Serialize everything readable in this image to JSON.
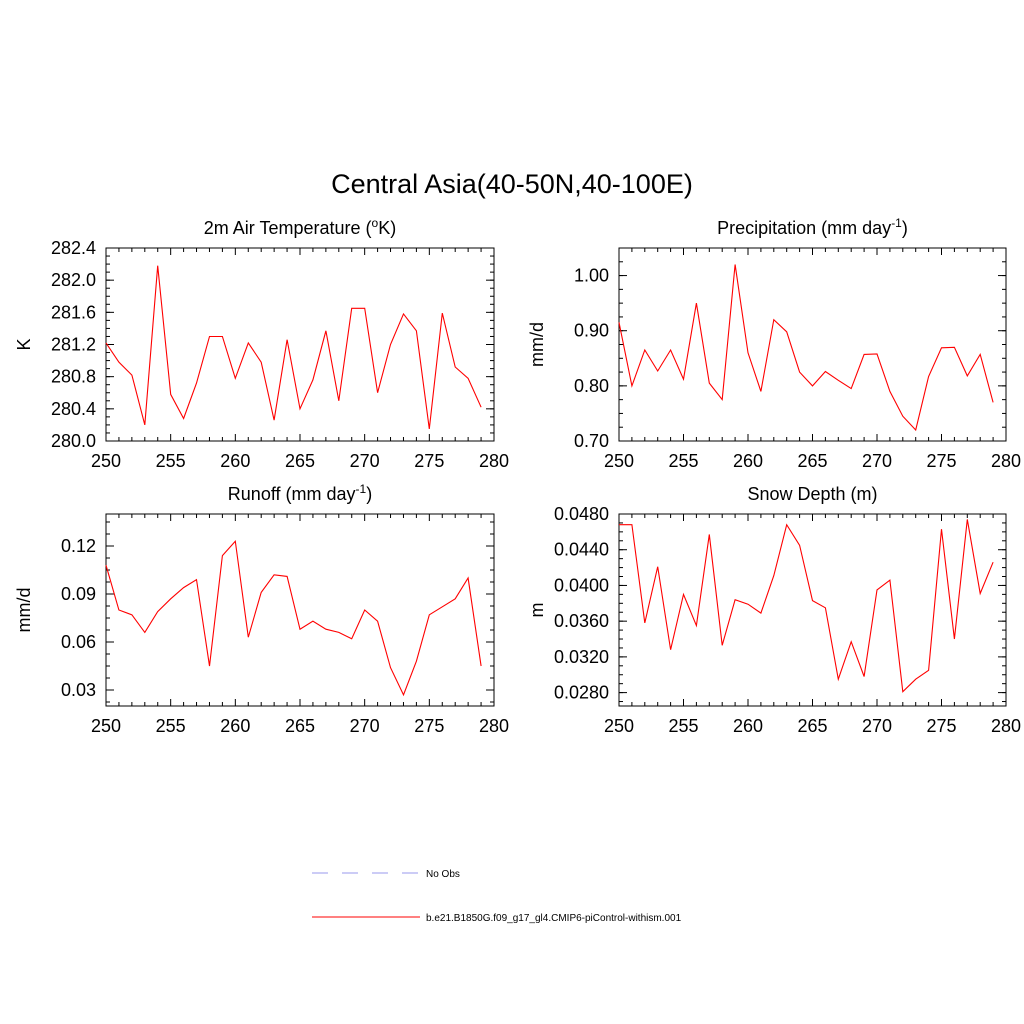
{
  "title": "Central Asia(40-50N,40-100E)",
  "colors": {
    "series": "#ff0000",
    "obs": "#9999ee",
    "axis": "#000000"
  },
  "legend": {
    "placement": "bottom-center",
    "entries": [
      {
        "label": "No Obs",
        "style": "dashed",
        "color": "#9999ee"
      },
      {
        "label": "b.e21.B1850G.f09_g17_gl4.CMIP6-piControl-withism.001",
        "style": "solid",
        "color": "#ff0000"
      }
    ]
  },
  "chart_data": [
    {
      "type": "line",
      "title": "2m Air Temperature (",
      "title_sup": "o",
      "title_after": "K)",
      "ylabel": "K",
      "xlim": [
        250,
        280
      ],
      "ylim": [
        280.0,
        282.4
      ],
      "xticks": [
        250,
        255,
        260,
        265,
        270,
        275,
        280
      ],
      "yticks": [
        280.0,
        280.4,
        280.8,
        281.2,
        281.6,
        282.0,
        282.4
      ],
      "ytick_labels": [
        "280.0",
        "280.4",
        "280.8",
        "281.2",
        "281.6",
        "282.0",
        "282.4"
      ],
      "x": [
        250,
        251,
        252,
        253,
        254,
        255,
        256,
        257,
        258,
        259,
        260,
        261,
        262,
        263,
        264,
        265,
        266,
        267,
        268,
        269,
        270,
        271,
        272,
        273,
        274,
        275,
        276,
        277,
        278,
        279
      ],
      "values": [
        281.22,
        280.98,
        280.82,
        280.2,
        282.18,
        280.58,
        280.28,
        280.72,
        281.3,
        281.3,
        280.78,
        281.22,
        280.98,
        280.26,
        281.26,
        280.4,
        280.76,
        281.37,
        280.5,
        281.65,
        281.65,
        280.6,
        281.2,
        281.58,
        281.37,
        280.15,
        281.59,
        280.92,
        280.78,
        280.42
      ]
    },
    {
      "type": "line",
      "title": "Precipitation (mm day",
      "title_sup": "-1",
      "title_after": ")",
      "ylabel": "mm/d",
      "xlim": [
        250,
        280
      ],
      "ylim": [
        0.7,
        1.05
      ],
      "xticks": [
        250,
        255,
        260,
        265,
        270,
        275,
        280
      ],
      "yticks": [
        0.7,
        0.8,
        0.9,
        1.0
      ],
      "ytick_labels": [
        "0.70",
        "0.80",
        "0.90",
        "1.00"
      ],
      "x": [
        250,
        251,
        252,
        253,
        254,
        255,
        256,
        257,
        258,
        259,
        260,
        261,
        262,
        263,
        264,
        265,
        266,
        267,
        268,
        269,
        270,
        271,
        272,
        273,
        274,
        275,
        276,
        277,
        278,
        279
      ],
      "values": [
        0.915,
        0.8,
        0.865,
        0.827,
        0.865,
        0.812,
        0.95,
        0.805,
        0.775,
        1.02,
        0.86,
        0.79,
        0.92,
        0.898,
        0.825,
        0.8,
        0.826,
        0.81,
        0.795,
        0.857,
        0.858,
        0.79,
        0.745,
        0.72,
        0.817,
        0.869,
        0.87,
        0.818,
        0.857,
        0.77
      ]
    },
    {
      "type": "line",
      "title": "Runoff (mm day",
      "title_sup": "-1",
      "title_after": ")",
      "ylabel": "mm/d",
      "xlim": [
        250,
        280
      ],
      "ylim": [
        0.02,
        0.14
      ],
      "xticks": [
        250,
        255,
        260,
        265,
        270,
        275,
        280
      ],
      "yticks": [
        0.03,
        0.06,
        0.09,
        0.12
      ],
      "ytick_labels": [
        "0.03",
        "0.06",
        "0.09",
        "0.12"
      ],
      "x": [
        250,
        251,
        252,
        253,
        254,
        255,
        256,
        257,
        258,
        259,
        260,
        261,
        262,
        263,
        264,
        265,
        266,
        267,
        268,
        269,
        270,
        271,
        272,
        273,
        274,
        275,
        276,
        277,
        278,
        279
      ],
      "values": [
        0.108,
        0.08,
        0.077,
        0.066,
        0.079,
        0.087,
        0.094,
        0.099,
        0.045,
        0.114,
        0.123,
        0.063,
        0.091,
        0.102,
        0.101,
        0.068,
        0.073,
        0.068,
        0.066,
        0.062,
        0.08,
        0.073,
        0.044,
        0.027,
        0.048,
        0.077,
        0.082,
        0.087,
        0.1,
        0.045
      ]
    },
    {
      "type": "line",
      "title": "Snow Depth (m)",
      "title_sup": "",
      "title_after": "",
      "ylabel": "m",
      "xlim": [
        250,
        280
      ],
      "ylim": [
        0.0265,
        0.048
      ],
      "xticks": [
        250,
        255,
        260,
        265,
        270,
        275,
        280
      ],
      "yticks": [
        0.028,
        0.032,
        0.036,
        0.04,
        0.044,
        0.048
      ],
      "ytick_labels": [
        "0.0280",
        "0.0320",
        "0.0360",
        "0.0400",
        "0.0440",
        "0.0480"
      ],
      "x": [
        250,
        251,
        252,
        253,
        254,
        255,
        256,
        257,
        258,
        259,
        260,
        261,
        262,
        263,
        264,
        265,
        266,
        267,
        268,
        269,
        270,
        271,
        272,
        273,
        274,
        275,
        276,
        277,
        278,
        279
      ],
      "values": [
        0.0468,
        0.0468,
        0.0358,
        0.0421,
        0.0328,
        0.039,
        0.0355,
        0.0457,
        0.0333,
        0.0384,
        0.0379,
        0.0369,
        0.0411,
        0.0468,
        0.0445,
        0.0383,
        0.0375,
        0.0295,
        0.0337,
        0.0298,
        0.0395,
        0.0406,
        0.0281,
        0.0295,
        0.0305,
        0.0463,
        0.034,
        0.0474,
        0.0391,
        0.0426
      ]
    }
  ]
}
